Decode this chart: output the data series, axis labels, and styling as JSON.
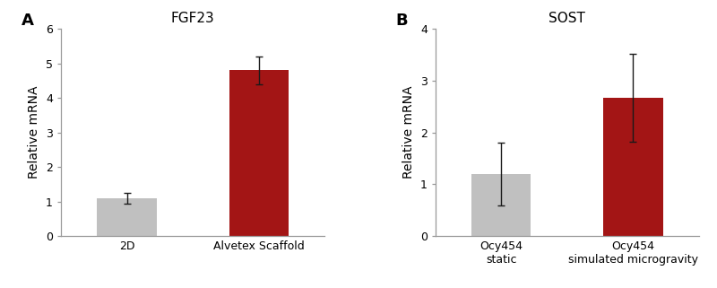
{
  "panel_A": {
    "title": "FGF23",
    "categories": [
      "2D",
      "Alvetex Scaffold"
    ],
    "values": [
      1.1,
      4.8
    ],
    "errors": [
      0.15,
      0.4
    ],
    "bar_colors": [
      "#c0c0c0",
      "#a31515"
    ],
    "ylim": [
      0,
      6
    ],
    "yticks": [
      0,
      1,
      2,
      3,
      4,
      5,
      6
    ],
    "ylabel": "Relative mRNA",
    "label": "A"
  },
  "panel_B": {
    "title": "SOST",
    "categories": [
      "Ocy454\nstatic",
      "Ocy454\nsimulated microgravity"
    ],
    "values": [
      1.2,
      2.67
    ],
    "errors": [
      0.6,
      0.85
    ],
    "bar_colors": [
      "#c0c0c0",
      "#a31515"
    ],
    "ylim": [
      0,
      4
    ],
    "yticks": [
      0,
      1,
      2,
      3,
      4
    ],
    "ylabel": "Relative mRNA",
    "label": "B"
  },
  "bar_width": 0.45,
  "figure_bg": "#ffffff",
  "error_capsize": 3,
  "error_color": "#1a1a1a",
  "error_linewidth": 1.0,
  "spine_color": "#999999",
  "tick_labelsize": 9,
  "axis_labelsize": 10,
  "title_fontsize": 11,
  "panel_label_fontsize": 13
}
